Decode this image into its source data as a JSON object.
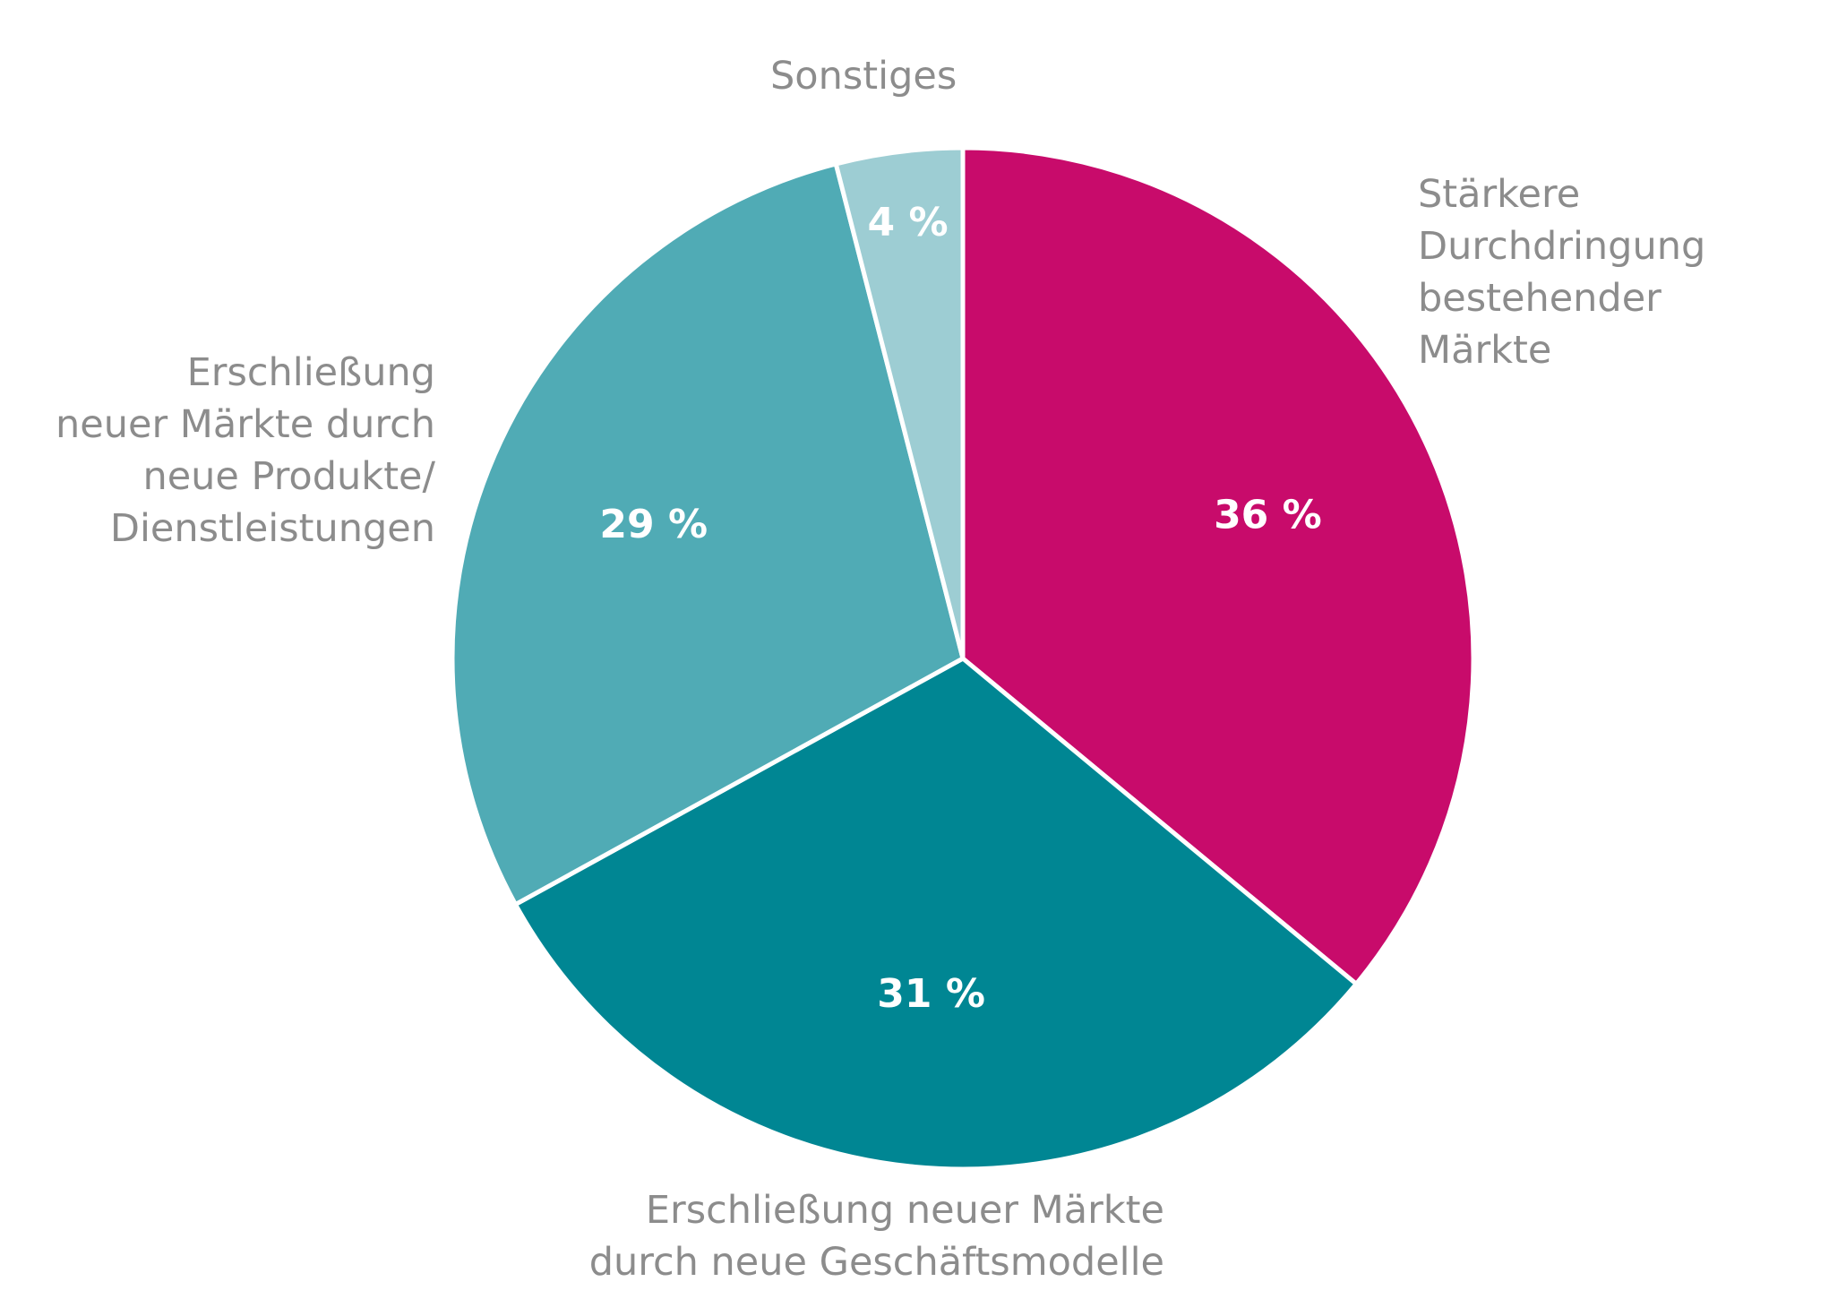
{
  "chart_data": {
    "type": "pie",
    "title": "",
    "slices": [
      {
        "lines": [
          "Stärkere",
          "Durchdringung",
          "bestehender",
          "Märkte"
        ],
        "value": 36,
        "value_label": "36 %",
        "color": "#c80b6b"
      },
      {
        "lines": [
          "Erschließung neuer Märkte",
          "durch neue Geschäftsmodelle"
        ],
        "value": 31,
        "value_label": "31 %",
        "color": "#008693"
      },
      {
        "lines": [
          "Erschließung",
          "neuer Märkte durch",
          "neue Produkte/",
          "Dienstleistungen"
        ],
        "value": 29,
        "value_label": "29 %",
        "color": "#50abb5"
      },
      {
        "lines": [
          "Sonstiges"
        ],
        "value": 4,
        "value_label": "4 %",
        "color": "#9dcdd3"
      }
    ],
    "start_angle": "12 o'clock",
    "direction": "clockwise",
    "separator_color": "#ffffff",
    "label_color": "#8c8c8c"
  }
}
